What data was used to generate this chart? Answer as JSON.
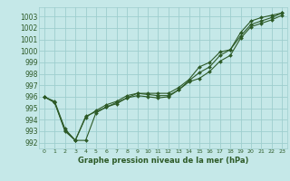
{
  "background_color": "#c5e8e8",
  "grid_color": "#9ecece",
  "line_color": "#2d5a27",
  "xlabel": "Graphe pression niveau de la mer (hPa)",
  "xlim": [
    -0.5,
    23.5
  ],
  "ylim": [
    991.5,
    1003.8
  ],
  "yticks": [
    992,
    993,
    994,
    995,
    996,
    997,
    998,
    999,
    1000,
    1001,
    1002,
    1003
  ],
  "xticks": [
    0,
    1,
    2,
    3,
    4,
    5,
    6,
    7,
    8,
    9,
    10,
    11,
    12,
    13,
    14,
    15,
    16,
    17,
    18,
    19,
    20,
    21,
    22,
    23
  ],
  "series1_x": [
    0,
    1,
    2,
    3,
    4,
    5,
    6,
    7,
    8,
    9,
    10,
    11,
    12,
    13,
    14,
    15,
    16,
    17,
    18,
    19,
    20,
    21,
    22,
    23
  ],
  "series1_y": [
    996.0,
    995.5,
    993.0,
    992.2,
    994.3,
    994.7,
    995.1,
    995.5,
    995.9,
    996.1,
    996.0,
    995.9,
    996.0,
    996.6,
    997.3,
    997.6,
    998.2,
    999.1,
    999.6,
    1001.1,
    1002.1,
    1002.4,
    1002.7,
    1003.1
  ],
  "series2_x": [
    0,
    1,
    2,
    3,
    4,
    5,
    6,
    7,
    8,
    9,
    10,
    11,
    12,
    13,
    14,
    15,
    16,
    17,
    18,
    19,
    20,
    21,
    22,
    23
  ],
  "series2_y": [
    996.0,
    995.5,
    993.1,
    992.2,
    994.2,
    994.8,
    995.3,
    995.6,
    996.1,
    996.3,
    996.2,
    996.1,
    996.1,
    996.6,
    997.4,
    998.1,
    998.6,
    999.6,
    1000.1,
    1001.3,
    1002.3,
    1002.6,
    1002.9,
    1003.3
  ],
  "series3_x": [
    0,
    1,
    2,
    3,
    4,
    5,
    6,
    7,
    8,
    9,
    10,
    11,
    12,
    13,
    14,
    15,
    16,
    17,
    18,
    19,
    20,
    21,
    22,
    23
  ],
  "series3_y": [
    996.0,
    995.6,
    993.2,
    992.2,
    992.2,
    994.6,
    995.1,
    995.4,
    995.9,
    996.3,
    996.3,
    996.3,
    996.3,
    996.8,
    997.5,
    998.6,
    999.0,
    999.9,
    1000.1,
    1001.6,
    1002.6,
    1002.9,
    1003.1,
    1003.3
  ],
  "ytick_fontsize": 5.5,
  "xtick_fontsize": 4.5,
  "xlabel_fontsize": 6.0,
  "linewidth": 0.8,
  "markersize": 2.0
}
